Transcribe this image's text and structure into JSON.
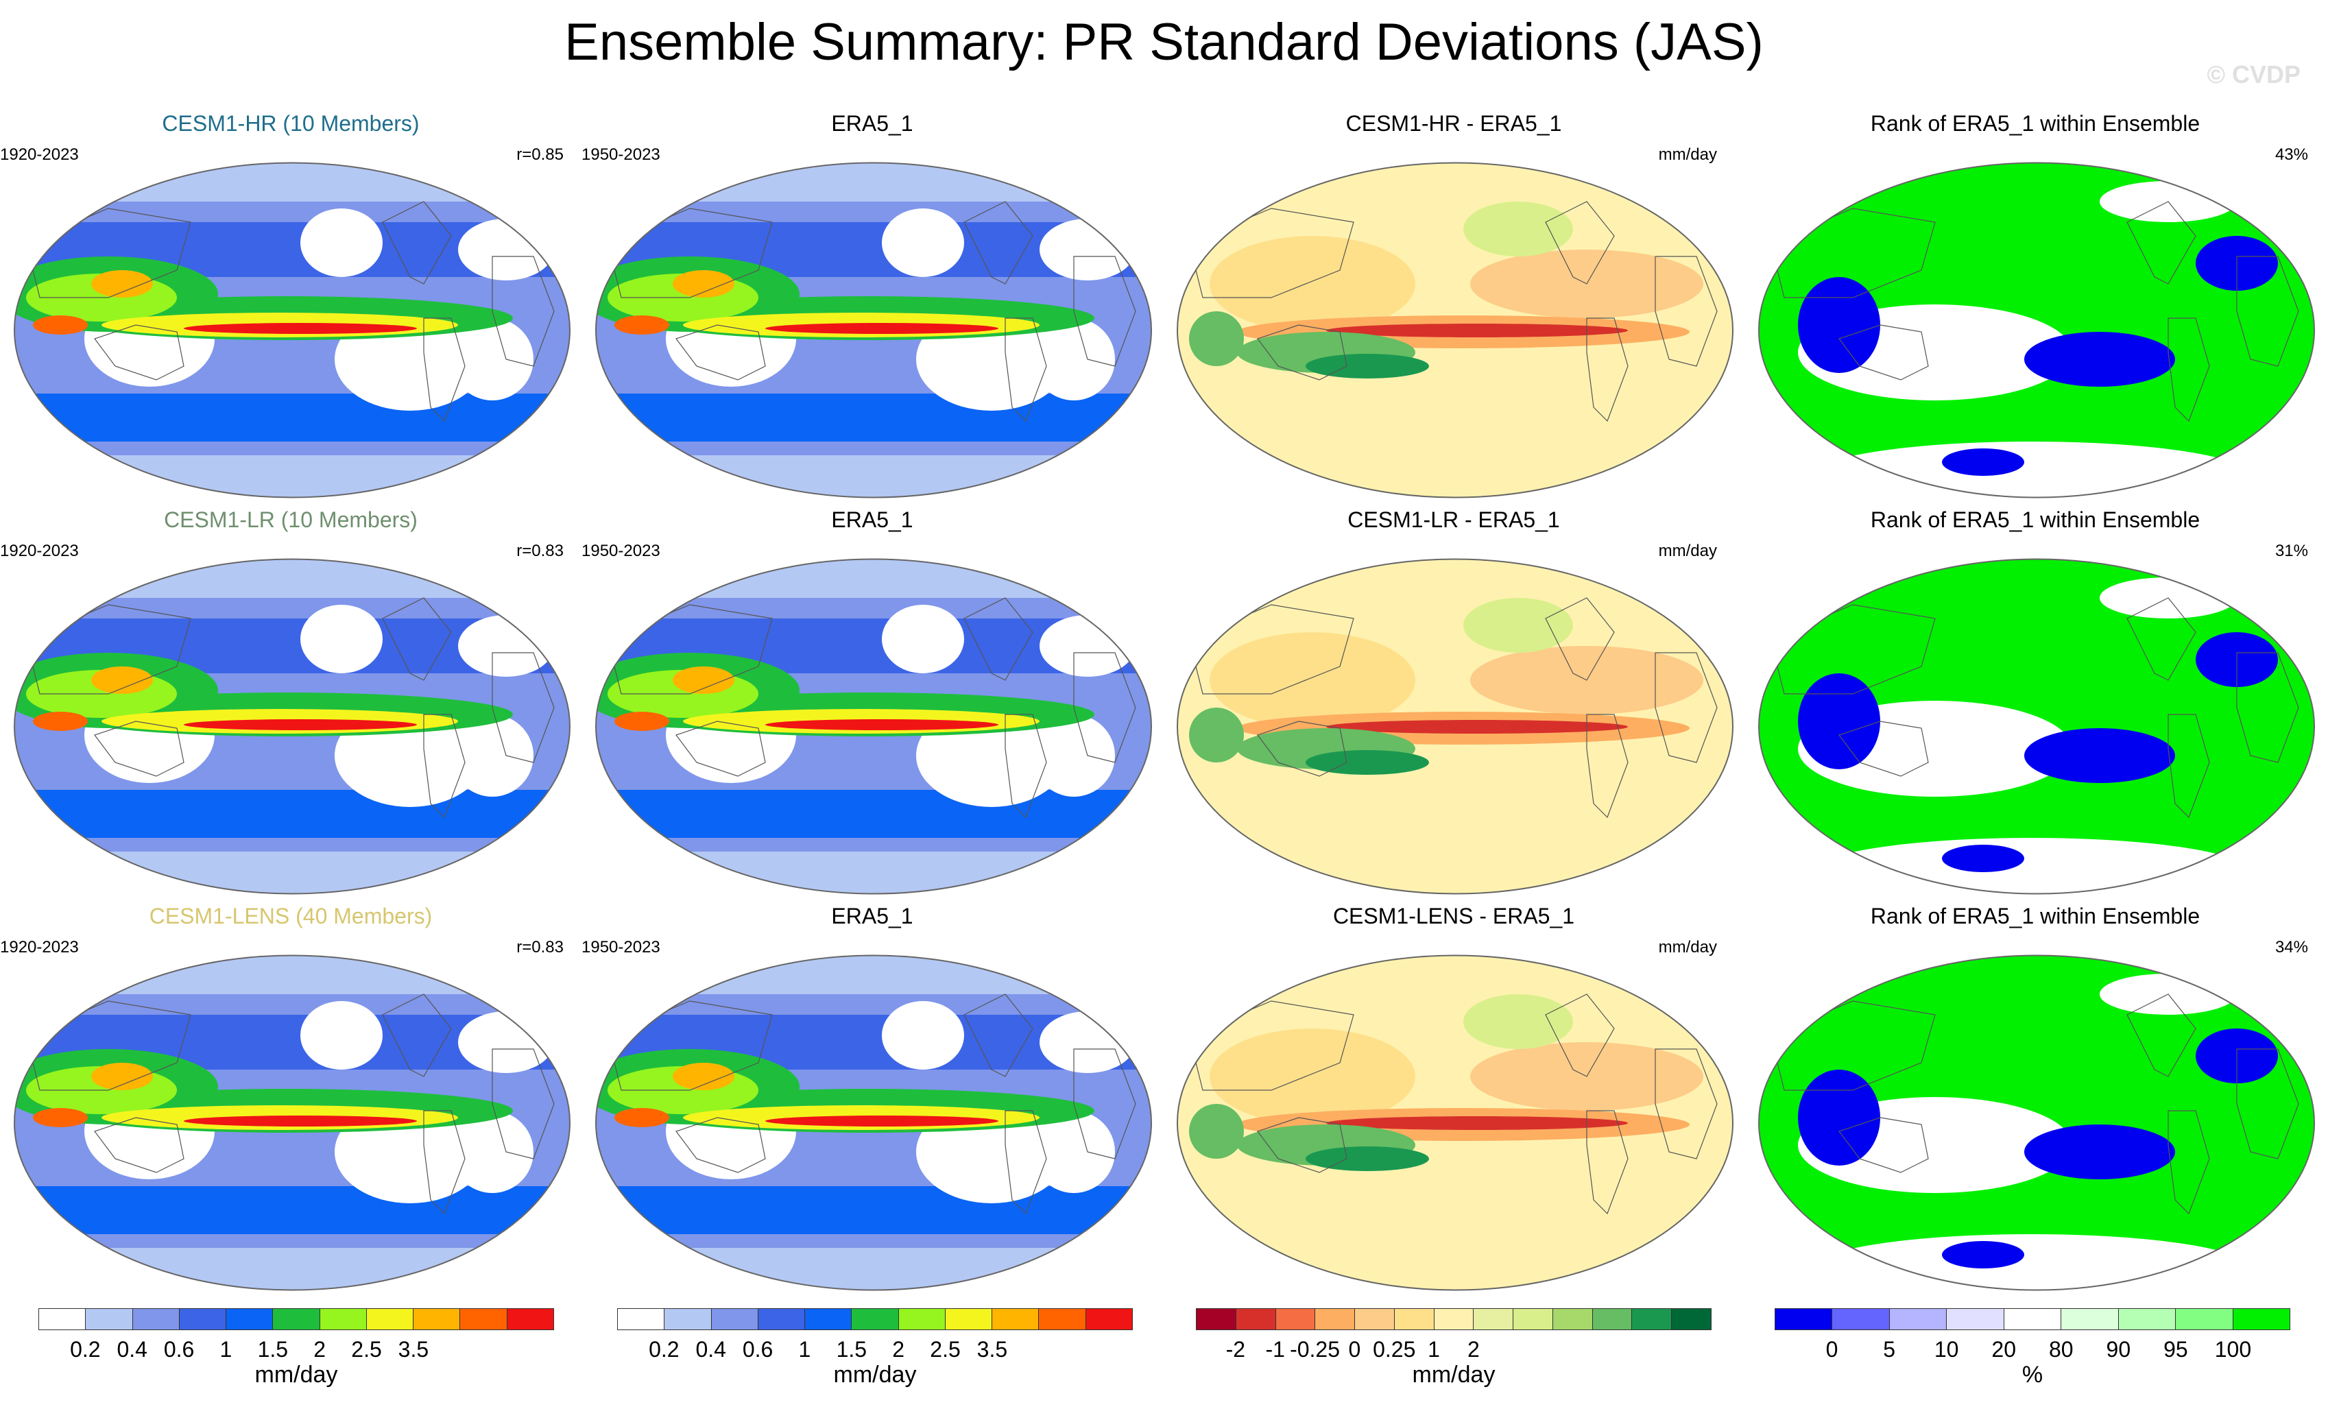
{
  "title": "Ensemble Summary: PR Standard Deviations (JAS)",
  "watermark": "© CVDP",
  "colors": {
    "std": [
      "#ffffff",
      "#b4c8f4",
      "#7f96ea",
      "#3c64e6",
      "#0a64f5",
      "#1ebe3c",
      "#96f51e",
      "#f5f51e",
      "#ffb400",
      "#ff6400",
      "#f01414"
    ],
    "diff": [
      "#a50026",
      "#d7302b",
      "#f46d43",
      "#fdae61",
      "#fdcc88",
      "#fee08b",
      "#fff2b0",
      "#e6f0a0",
      "#d9ef8b",
      "#a6d96a",
      "#66bd63",
      "#1a9850",
      "#006837"
    ],
    "rank": [
      "#0000f0",
      "#6464ff",
      "#b4b4ff",
      "#e1e1ff",
      "#ffffff",
      "#dcffdc",
      "#b4ffb4",
      "#82ff82",
      "#00f000"
    ]
  },
  "rows": [
    {
      "model": {
        "title": "CESM1-HR (10 Members)",
        "title_color": "#1f6e8c",
        "years": "1920-2023",
        "corr": "r=0.85"
      },
      "obs": {
        "title": "ERA5_1",
        "years": "1950-2023"
      },
      "diff": {
        "title": "CESM1-HR - ERA5_1",
        "unit": "mm/day"
      },
      "rank": {
        "title": "Rank of ERA5_1 within Ensemble",
        "pct": "43%"
      }
    },
    {
      "model": {
        "title": "CESM1-LR (10 Members)",
        "title_color": "#6f8f6f",
        "years": "1920-2023",
        "corr": "r=0.83"
      },
      "obs": {
        "title": "ERA5_1",
        "years": "1950-2023"
      },
      "diff": {
        "title": "CESM1-LR - ERA5_1",
        "unit": "mm/day"
      },
      "rank": {
        "title": "Rank of ERA5_1 within Ensemble",
        "pct": "31%"
      }
    },
    {
      "model": {
        "title": "CESM1-LENS (40 Members)",
        "title_color": "#d7c66e",
        "years": "1920-2023",
        "corr": "r=0.83"
      },
      "obs": {
        "title": "ERA5_1",
        "years": "1950-2023"
      },
      "diff": {
        "title": "CESM1-LENS - ERA5_1",
        "unit": "mm/day"
      },
      "rank": {
        "title": "Rank of ERA5_1 within Ensemble",
        "pct": "34%"
      }
    }
  ],
  "colorbars": [
    {
      "id": "std1",
      "palette": "std",
      "unit": "mm/day",
      "ticks": [
        "0.2",
        "0.4",
        "0.6",
        "1",
        "1.5",
        "2",
        "2.5",
        "3.5"
      ]
    },
    {
      "id": "std2",
      "palette": "std",
      "unit": "mm/day",
      "ticks": [
        "0.2",
        "0.4",
        "0.6",
        "1",
        "1.5",
        "2",
        "2.5",
        "3.5"
      ]
    },
    {
      "id": "diff",
      "palette": "diff",
      "unit": "mm/day",
      "ticks": [
        "-2",
        "-1",
        "-0.25",
        "0",
        "0.25",
        "1",
        "2"
      ]
    },
    {
      "id": "rank",
      "palette": "rank",
      "unit": "%",
      "ticks": [
        "0",
        "5",
        "10",
        "20",
        "80",
        "90",
        "95",
        "100"
      ]
    }
  ]
}
